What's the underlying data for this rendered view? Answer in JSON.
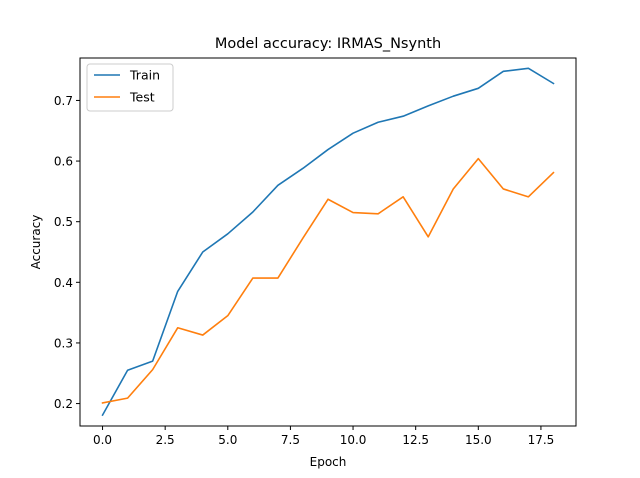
{
  "chart_data": {
    "type": "line",
    "title": "Model accuracy: IRMAS_Nsynth",
    "xlabel": "Epoch",
    "ylabel": "Accuracy",
    "xlim": [
      -0.9,
      18.9
    ],
    "ylim": [
      0.163,
      0.77
    ],
    "xticks": [
      0.0,
      2.5,
      5.0,
      7.5,
      10.0,
      12.5,
      15.0,
      17.5
    ],
    "xtick_labels": [
      "0.0",
      "2.5",
      "5.0",
      "7.5",
      "10.0",
      "12.5",
      "15.0",
      "17.5"
    ],
    "yticks": [
      0.2,
      0.3,
      0.4,
      0.5,
      0.6,
      0.7
    ],
    "ytick_labels": [
      "0.2",
      "0.3",
      "0.4",
      "0.5",
      "0.6",
      "0.7"
    ],
    "grid": false,
    "legend_position": "upper-left",
    "x": [
      0,
      1,
      2,
      3,
      4,
      5,
      6,
      7,
      8,
      9,
      10,
      11,
      12,
      13,
      14,
      15,
      16,
      17,
      18
    ],
    "series": [
      {
        "name": "Train",
        "color": "#1f77b4",
        "values": [
          0.181,
          0.255,
          0.27,
          0.385,
          0.45,
          0.48,
          0.516,
          0.56,
          0.588,
          0.619,
          0.646,
          0.664,
          0.674,
          0.691,
          0.707,
          0.72,
          0.748,
          0.753,
          0.728
        ]
      },
      {
        "name": "Test",
        "color": "#ff7f0e",
        "values": [
          0.201,
          0.209,
          0.256,
          0.325,
          0.313,
          0.345,
          0.407,
          0.407,
          0.473,
          0.537,
          0.515,
          0.513,
          0.541,
          0.475,
          0.554,
          0.604,
          0.554,
          0.541,
          0.581
        ]
      }
    ]
  }
}
